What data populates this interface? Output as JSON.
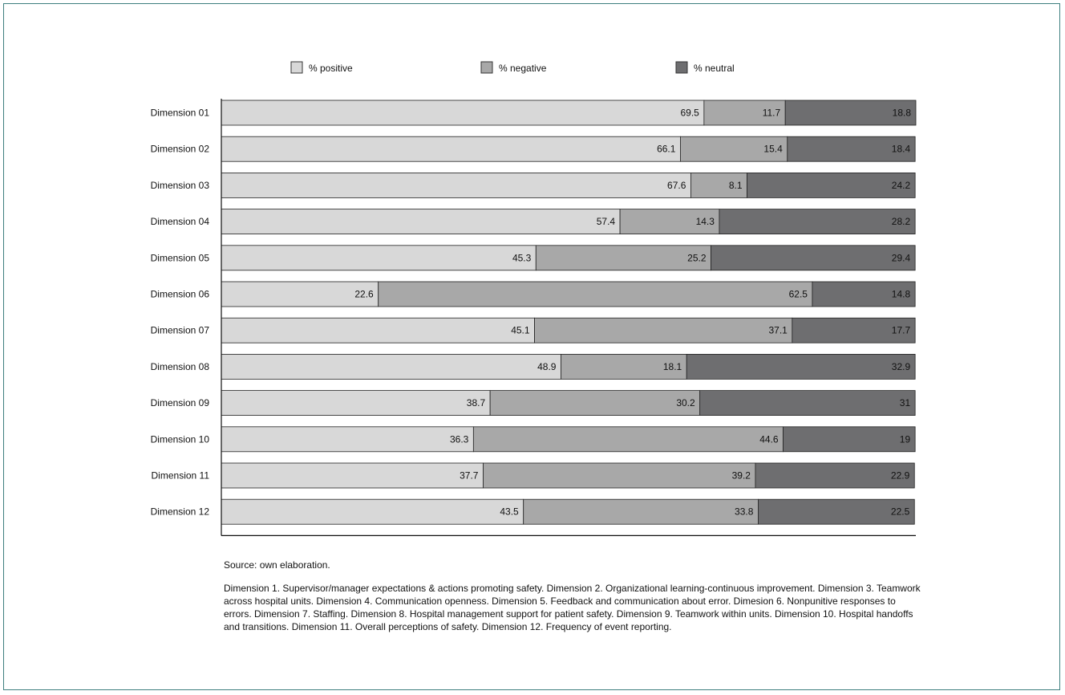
{
  "chart_data": {
    "type": "bar",
    "orientation": "horizontal",
    "stacked": true,
    "categories": [
      "Dimension 01",
      "Dimension 02",
      "Dimension 03",
      "Dimension 04",
      "Dimension 05",
      "Dimension 06",
      "Dimension 07",
      "Dimension 08",
      "Dimension 09",
      "Dimension 10",
      "Dimension 11",
      "Dimension 12"
    ],
    "series": [
      {
        "name": "% positive",
        "color": "#d8d8d8",
        "values": [
          69.5,
          66.1,
          67.6,
          57.4,
          45.3,
          22.6,
          45.1,
          48.9,
          38.7,
          36.3,
          37.7,
          43.5
        ]
      },
      {
        "name": "% negative",
        "color": "#a8a8a8",
        "values": [
          11.7,
          15.4,
          8.1,
          14.3,
          25.2,
          62.5,
          37.1,
          18.1,
          30.2,
          44.6,
          39.2,
          33.8
        ]
      },
      {
        "name": "% neutral",
        "color": "#6e6e70",
        "values": [
          18.8,
          18.4,
          24.2,
          28.2,
          29.4,
          14.8,
          17.7,
          32.9,
          31,
          19,
          22.9,
          22.5
        ]
      }
    ],
    "data_labels": [
      [
        "69.5",
        "11.7",
        "18.8"
      ],
      [
        "66.1",
        "15.4",
        "18.4"
      ],
      [
        "67.6",
        "8.1",
        "24.2"
      ],
      [
        "57.4",
        "14.3",
        "28.2"
      ],
      [
        "45.3",
        "25.2",
        "29.4"
      ],
      [
        "22.6",
        "62.5",
        "14.8"
      ],
      [
        "45.1",
        "37.1",
        "17.7"
      ],
      [
        "48.9",
        "18.1",
        "32.9"
      ],
      [
        "38.7",
        "30.2",
        "31"
      ],
      [
        "36.3",
        "44.6",
        "19"
      ],
      [
        "37.7",
        "39.2",
        "22.9"
      ],
      [
        "43.5",
        "33.8",
        "22.5"
      ]
    ],
    "xlim": [
      0,
      100
    ],
    "legend_position": "top",
    "grid": false,
    "title": "",
    "xlabel": "",
    "ylabel": ""
  },
  "notes": {
    "source": "Source: own elaboration.",
    "description": "Dimension 1. Supervisor/manager expectations & actions promoting safety. Dimension 2. Organizational learning-continuous improvement. Dimension 3. Teamwork across hospital units. Dimension 4. Communication openness. Dimension 5. Feedback and communication about error. Dimesion 6. Nonpunitive responses to errors. Dimension 7. Staffing. Dimension 8. Hospital management support for patient safety. Dimension 9. Teamwork within units. Dimension 10. Hospital handoffs and transitions. Dimension 11. Overall perceptions of safety. Dimension 12. Frequency of event reporting."
  }
}
